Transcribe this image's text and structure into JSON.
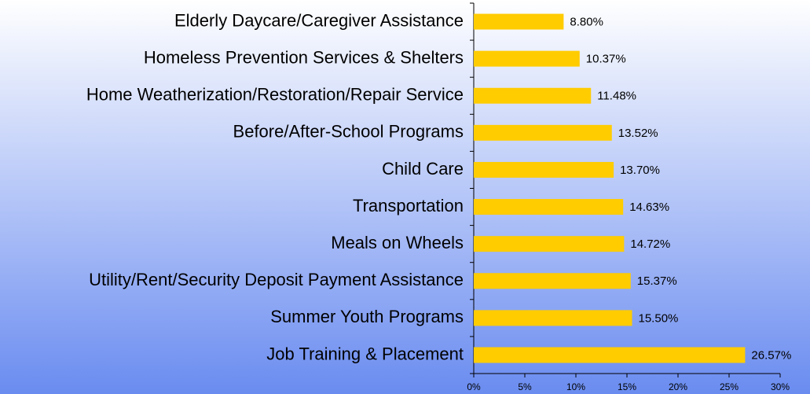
{
  "chart_data": {
    "type": "barh",
    "categories": [
      "Elderly Daycare/Caregiver Assistance",
      "Homeless Prevention Services & Shelters",
      "Home Weatherization/Restoration/Repair Service",
      "Before/After-School Programs",
      "Child Care",
      "Transportation",
      "Meals on Wheels",
      "Utility/Rent/Security Deposit Payment Assistance",
      "Summer Youth Programs",
      "Job Training & Placement"
    ],
    "values": [
      8.8,
      10.37,
      11.48,
      13.52,
      13.7,
      14.63,
      14.72,
      15.37,
      15.5,
      26.57
    ],
    "value_labels": [
      "8.80%",
      "10.37%",
      "11.48%",
      "13.52%",
      "13.70%",
      "14.63%",
      "14.72%",
      "15.37%",
      "15.50%",
      "26.57%"
    ],
    "color": "#ffcc00",
    "xlim": [
      0,
      30
    ],
    "xticks": [
      {
        "value": 0,
        "label": "0%"
      },
      {
        "value": 5,
        "label": "5%"
      },
      {
        "value": 10,
        "label": "10%"
      },
      {
        "value": 15,
        "label": "15%"
      },
      {
        "value": 20,
        "label": "20%"
      },
      {
        "value": 25,
        "label": "25%"
      },
      {
        "value": 30,
        "label": "30%"
      }
    ]
  }
}
